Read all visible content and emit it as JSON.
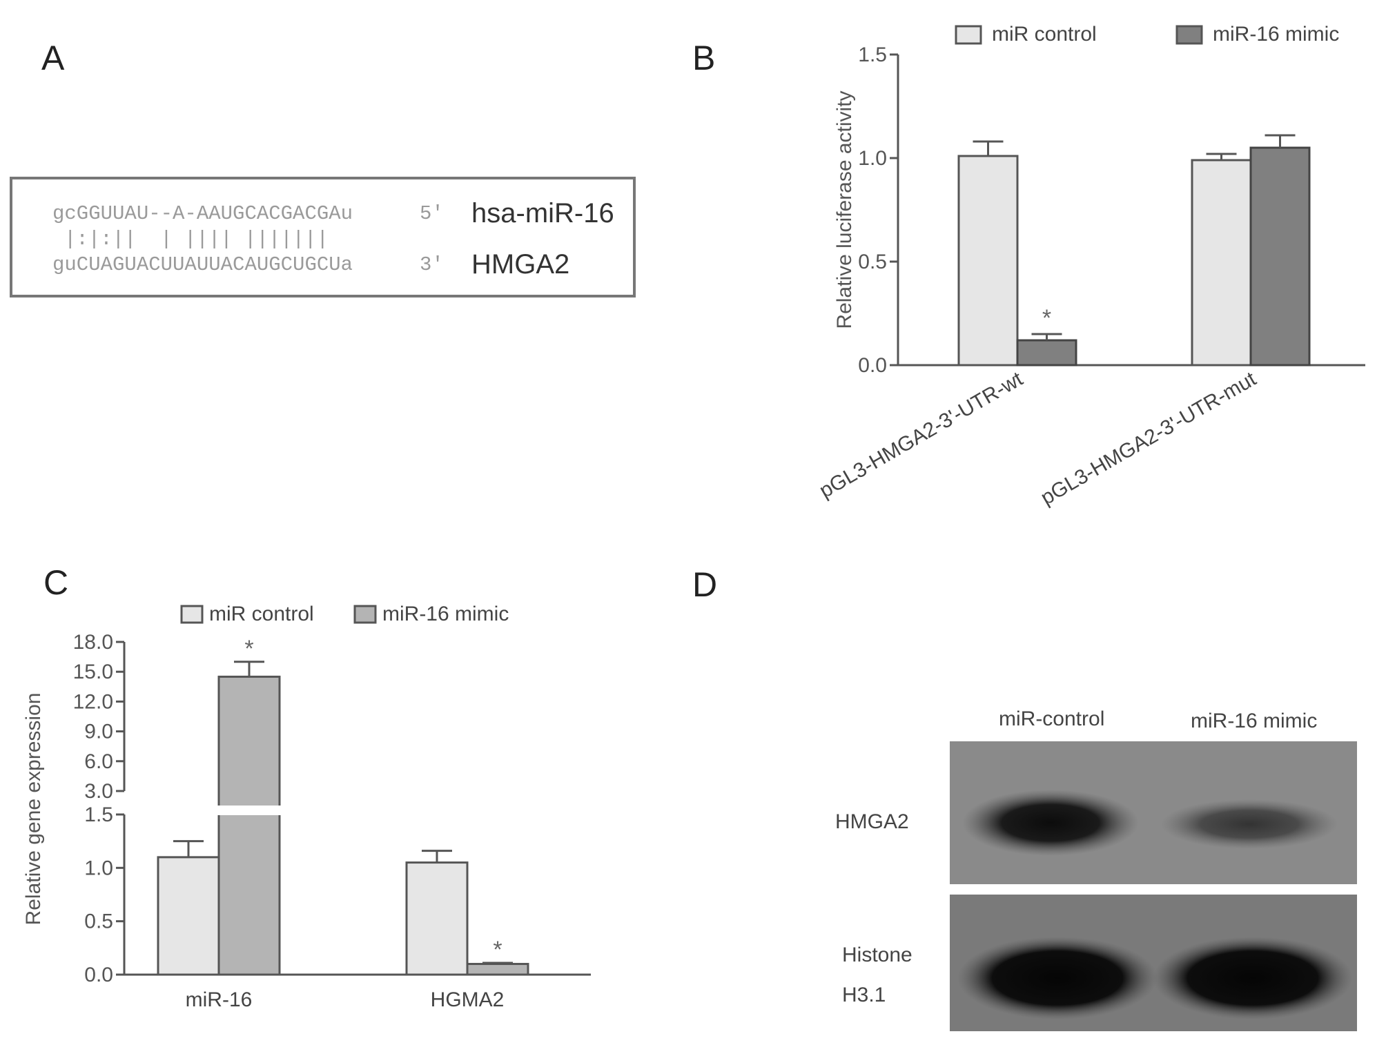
{
  "panels": {
    "a": "A",
    "b": "B",
    "c": "C",
    "d": "D"
  },
  "panel_a": {
    "line1_seq": "gcGGUUAU--A-AAUGCACGACGAu",
    "line1_end": "5'",
    "line1_name": "hsa-miR-16",
    "pairs": "|:|:||  | |||| |||||||",
    "line2_seq": "guCUAGUACUUAUUACAUGCUGCUa",
    "line2_end": "3'",
    "line2_name": "HMGA2"
  },
  "panel_d": {
    "lane1": "miR-control",
    "lane2": "miR-16 mimic",
    "row1": "HMGA2",
    "row2_line1": "Histone",
    "row2_line2": "H3.1"
  },
  "chart_data": [
    {
      "type": "bar",
      "panel": "B",
      "categories": [
        "pGL3-HMGA2-3'-UTR-wt",
        "pGL3-HMGA2-3'-UTR-mut"
      ],
      "series": [
        {
          "name": "miR control",
          "values": [
            1.01,
            0.99
          ],
          "errors": [
            0.07,
            0.03
          ],
          "color": "#e6e6e6"
        },
        {
          "name": "miR-16 mimic",
          "values": [
            0.12,
            1.05
          ],
          "errors": [
            0.03,
            0.06
          ],
          "color": "#808080"
        }
      ],
      "significance": [
        "*",
        ""
      ],
      "ylabel": "Relative luciferase activity",
      "ylim": [
        0,
        1.5
      ],
      "yticks": [
        "0.0",
        "0.5",
        "1.0",
        "1.5"
      ],
      "legend": "top"
    },
    {
      "type": "bar",
      "panel": "C",
      "categories": [
        "miR-16",
        "HGMA2"
      ],
      "series": [
        {
          "name": "miR control",
          "values": [
            1.1,
            1.05
          ],
          "errors": [
            0.15,
            0.11
          ],
          "color": "#e6e6e6"
        },
        {
          "name": "miR-16 mimic",
          "values": [
            14.5,
            0.1
          ],
          "errors": [
            1.5,
            0.01
          ],
          "color": "#b4b4b4"
        }
      ],
      "significance": [
        "*",
        "*"
      ],
      "ylabel": "Relative gene expression",
      "ylim": [
        0,
        18
      ],
      "axis_break": [
        1.5,
        3.0
      ],
      "yticks_lower": [
        "0.0",
        "0.5",
        "1.0",
        "1.5"
      ],
      "yticks_upper": [
        "3.0",
        "6.0",
        "9.0",
        "12.0",
        "15.0",
        "18.0"
      ],
      "legend": "top"
    }
  ]
}
